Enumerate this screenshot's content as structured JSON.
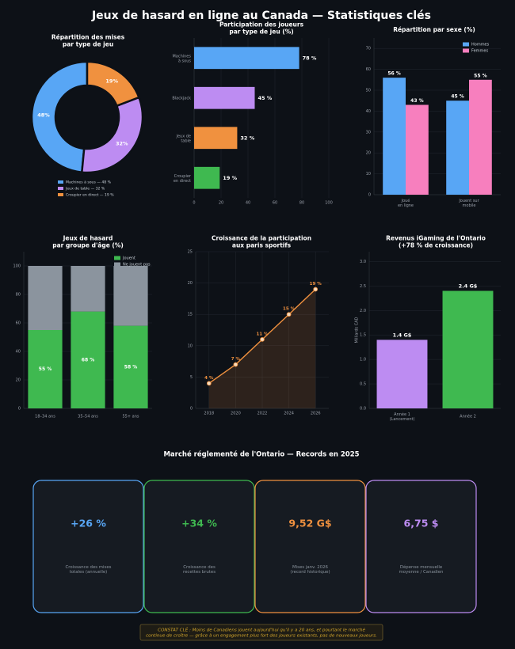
{
  "title": "Jeux de hasard en ligne au Canada — Statistiques clés",
  "chart_data": [
    {
      "type": "pie",
      "donut": true,
      "title": "Répartition des mises\npar type de jeu",
      "categories": [
        "Machines à sous — 48 %",
        "Jeux de table — 32 %",
        "Croupier en direct — 19 %"
      ],
      "values": [
        48,
        32,
        19
      ],
      "value_labels": [
        "48%",
        "32%",
        "19%"
      ],
      "colors": [
        "#58a6f5",
        "#bd8cf2",
        "#f0913f"
      ]
    },
    {
      "type": "barh",
      "title": "Participation des joueurs\npar type de jeu (%)",
      "categories": [
        "Machines\nà sous",
        "Blackjack",
        "Jeux de\ntable",
        "Croupier\nen direct"
      ],
      "values": [
        78,
        45,
        32,
        19
      ],
      "value_labels": [
        "78 %",
        "45 %",
        "32 %",
        "19 %"
      ],
      "colors": [
        "#58a6f5",
        "#bd8cf2",
        "#f0913f",
        "#3fb950"
      ],
      "xlim": [
        0,
        100
      ],
      "xticks": [
        0,
        20,
        40,
        60,
        80,
        100
      ],
      "grid": true
    },
    {
      "type": "bar",
      "title": "Répartition par sexe (%)",
      "categories": [
        "Joué\nen ligne",
        "Jouent sur\nmobile"
      ],
      "series": [
        {
          "name": "Hommes",
          "color": "#58a6f5",
          "values": [
            56,
            45
          ],
          "value_labels": [
            "56 %",
            "45 %"
          ]
        },
        {
          "name": "Femmes",
          "color": "#f77fbe",
          "values": [
            43,
            55
          ],
          "value_labels": [
            "43 %",
            "55 %"
          ]
        }
      ],
      "ylim": [
        0,
        75
      ],
      "yticks": [
        0,
        10,
        20,
        30,
        40,
        50,
        60,
        70
      ],
      "grid": true,
      "legend": "upper right"
    },
    {
      "type": "bar",
      "stacked": true,
      "title": "Jeux de hasard\npar groupe d'âge (%)",
      "categories": [
        "18–34 ans",
        "35–54 ans",
        "55+ ans"
      ],
      "series": [
        {
          "name": "Jouent",
          "color": "#3fb950",
          "values": [
            55,
            68,
            58
          ],
          "value_labels": [
            "55 %",
            "68 %",
            "58 %"
          ]
        },
        {
          "name": "Ne jouent pas",
          "color": "#8b949e",
          "values": [
            45,
            32,
            42
          ]
        }
      ],
      "ylim": [
        0,
        110
      ],
      "yticks": [
        0,
        20,
        40,
        60,
        80,
        100
      ],
      "grid": true,
      "legend": "upper right"
    },
    {
      "type": "line",
      "title": "Croissance de la participation\naux paris sportifs",
      "x": [
        2018,
        2020,
        2022,
        2024,
        2026
      ],
      "values": [
        4,
        7,
        11,
        15,
        19
      ],
      "value_labels": [
        "4 %",
        "7 %",
        "11 %",
        "15 %",
        "19 %"
      ],
      "color": "#f0913f",
      "xlim": [
        2017,
        2027
      ],
      "xticks": [
        2018,
        2020,
        2022,
        2024,
        2026
      ],
      "ylim": [
        0,
        25
      ],
      "yticks": [
        0,
        5,
        10,
        15,
        20,
        25
      ],
      "grid": true
    },
    {
      "type": "bar",
      "title": "Revenus iGaming de l'Ontario\n(+78 % de croissance)",
      "ylabel": "Milliards CAD",
      "categories": [
        "Année 1\n(Lancement)",
        "Année 2"
      ],
      "values": [
        1.4,
        2.4
      ],
      "value_labels": [
        "1.4 G$",
        "2.4 G$"
      ],
      "colors": [
        "#bd8cf2",
        "#3fb950"
      ],
      "ylim": [
        0,
        3.2
      ],
      "yticks": [
        {
          "value": 0,
          "label": "0.0"
        },
        0.5,
        {
          "value": 1,
          "label": "1.0"
        },
        1.5,
        {
          "value": 2,
          "label": "2.0"
        },
        2.5,
        {
          "value": 3,
          "label": "3.0"
        }
      ],
      "grid": true
    }
  ],
  "section_title": "Marché réglementé de l'Ontario — Records en 2025",
  "kpis": [
    {
      "value": "+26 %",
      "label": "Croissance des mises\ntotales (annuelle)",
      "color": "#58a6f5"
    },
    {
      "value": "+34 %",
      "label": "Croissance des\nrecettes brutes",
      "color": "#3fb950"
    },
    {
      "value": "9,52 G$",
      "label": "Mises janv. 2026\n(record historique)",
      "color": "#f0913f"
    },
    {
      "value": "6,75 $",
      "label": "Dépense mensuelle\nmoyenne / Canadien",
      "color": "#bd8cf2"
    }
  ],
  "note": "CONSTAT CLÉ :  Moins de Canadiens jouent aujourd'hui qu'il y a 20 ans, et pourtant le marché\ncontinue de croître — grâce à un engagement plus fort des joueurs existants, pas de nouveaux joueurs."
}
